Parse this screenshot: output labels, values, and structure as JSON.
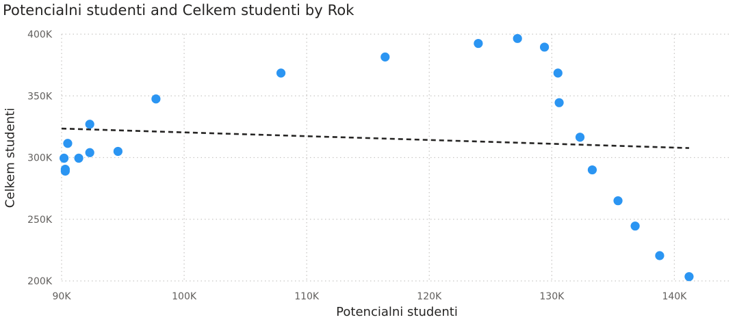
{
  "chart_data": {
    "type": "scatter",
    "title": "Potencialni studenti and Celkem studenti by Rok",
    "xlabel": "Potencialni studenti",
    "ylabel": "Celkem studenti",
    "xlim": [
      90000,
      144500
    ],
    "ylim": [
      200000,
      400000
    ],
    "x_ticks": [
      90000,
      100000,
      110000,
      120000,
      130000,
      140000
    ],
    "x_tick_labels": [
      "90K",
      "100K",
      "110K",
      "120K",
      "130K",
      "140K"
    ],
    "y_ticks": [
      200000,
      250000,
      300000,
      350000,
      400000
    ],
    "y_tick_labels": [
      "200K",
      "250K",
      "300K",
      "350K",
      "400K"
    ],
    "grid": true,
    "point_color": "#2b95f2",
    "trend_color": "#252423",
    "trend_line": {
      "x": [
        90000,
        141200
      ],
      "y": [
        323500,
        307700
      ]
    },
    "series": [
      {
        "x": [
          90200,
          90300,
          90300,
          90500,
          91400,
          92300,
          92300,
          94600,
          97700,
          107900,
          116400,
          124000,
          127200,
          129400,
          130500,
          130600,
          132300,
          133300,
          135400,
          136800,
          138800,
          141200
        ],
        "y": [
          299500,
          290500,
          289000,
          311500,
          299500,
          327000,
          304000,
          305000,
          347500,
          368500,
          381500,
          392500,
          396500,
          389500,
          368500,
          344500,
          316500,
          290000,
          265000,
          244500,
          220500,
          203500
        ]
      }
    ]
  }
}
